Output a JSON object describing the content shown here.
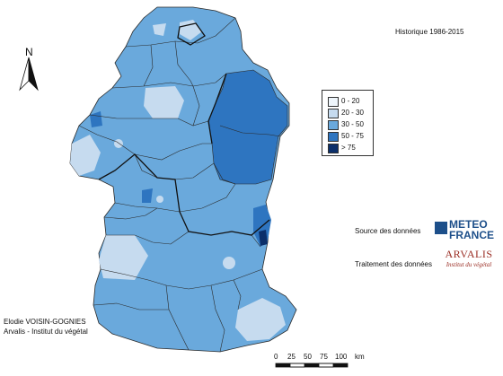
{
  "map": {
    "period": "Historique 1986-2015",
    "north_label": "N",
    "legend": {
      "items": [
        {
          "label": "0 - 20",
          "color": "#eef5fb"
        },
        {
          "label": "20 - 30",
          "color": "#c6dbef"
        },
        {
          "label": "30 - 50",
          "color": "#6aa9dc"
        },
        {
          "label": "50 - 75",
          "color": "#2e75c0"
        },
        {
          "label": "> 75",
          "color": "#0b2f6a"
        }
      ]
    },
    "scale": {
      "ticks": [
        "0",
        "25",
        "50",
        "75",
        "100"
      ],
      "unit": "km"
    },
    "credits": {
      "source_label": "Source des données",
      "processing_label": "Traitement des données",
      "author_line1": "Elodie VOISIN-GOGNIES",
      "author_line2": "Arvalis - Institut du végétal"
    },
    "logos": {
      "meteo_line1": "METEO",
      "meteo_line2": "FRANCE",
      "arvalis_title": "ARVALIS",
      "arvalis_sub": "Institut du végétal"
    }
  }
}
